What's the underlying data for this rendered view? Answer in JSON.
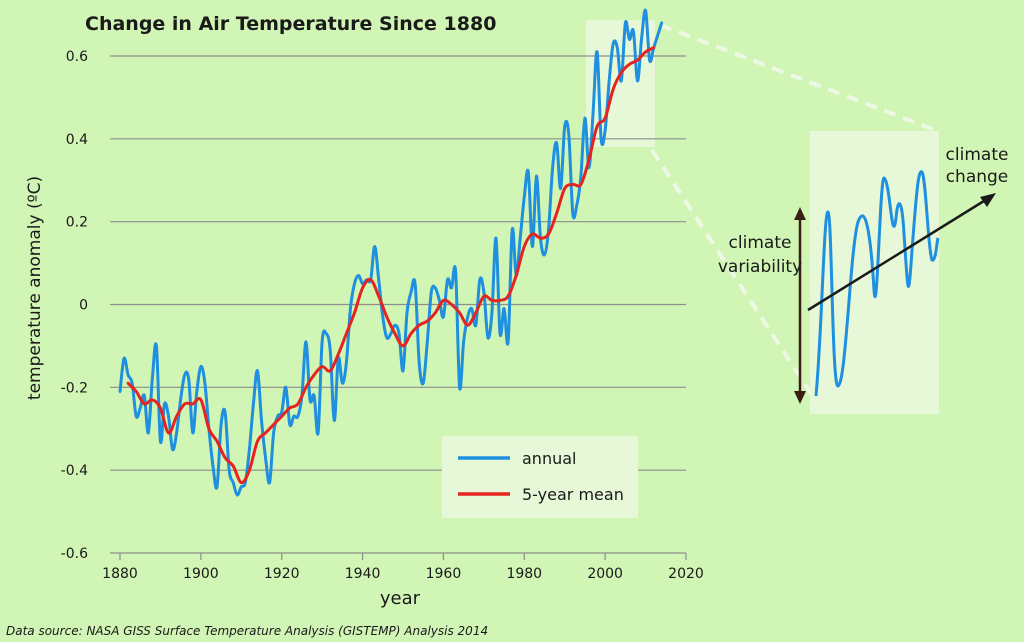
{
  "chart_data": {
    "type": "line",
    "title": "Change in Air Temperature Since 1880",
    "xlabel": "year",
    "ylabel": "temperature anomaly (ºC)",
    "xlim": [
      1880,
      2020
    ],
    "ylim": [
      -0.6,
      0.6
    ],
    "xticks": [
      1880,
      1900,
      1920,
      1940,
      1960,
      1980,
      2000,
      2020
    ],
    "yticks": [
      -0.6,
      -0.4,
      -0.2,
      0,
      0.2,
      0.4,
      0.6
    ],
    "xtick_labels": [
      "1880",
      "1900",
      "1920",
      "1940",
      "1960",
      "1980",
      "2000",
      "2020"
    ],
    "ytick_labels": [
      "-0.6",
      "-0.4",
      "-0.2",
      "0",
      "0.2",
      "0.4",
      "0.6"
    ],
    "grid": "horizontal",
    "legend": {
      "placement": "bottom-right",
      "entries": [
        "annual",
        "5-year mean"
      ]
    },
    "series": [
      {
        "name": "annual",
        "color": "#1f8fdf",
        "x": [
          1880,
          1881,
          1882,
          1883,
          1884,
          1885,
          1886,
          1887,
          1888,
          1889,
          1890,
          1891,
          1892,
          1893,
          1894,
          1895,
          1896,
          1897,
          1898,
          1899,
          1900,
          1901,
          1902,
          1903,
          1904,
          1905,
          1906,
          1907,
          1908,
          1909,
          1910,
          1911,
          1912,
          1913,
          1914,
          1915,
          1916,
          1917,
          1918,
          1919,
          1920,
          1921,
          1922,
          1923,
          1924,
          1925,
          1926,
          1927,
          1928,
          1929,
          1930,
          1931,
          1932,
          1933,
          1934,
          1935,
          1936,
          1937,
          1938,
          1939,
          1940,
          1941,
          1942,
          1943,
          1944,
          1945,
          1946,
          1947,
          1948,
          1949,
          1950,
          1951,
          1952,
          1953,
          1954,
          1955,
          1956,
          1957,
          1958,
          1959,
          1960,
          1961,
          1962,
          1963,
          1964,
          1965,
          1966,
          1967,
          1968,
          1969,
          1970,
          1971,
          1972,
          1973,
          1974,
          1975,
          1976,
          1977,
          1978,
          1979,
          1980,
          1981,
          1982,
          1983,
          1984,
          1985,
          1986,
          1987,
          1988,
          1989,
          1990,
          1991,
          1992,
          1993,
          1994,
          1995,
          1996,
          1997,
          1998,
          1999,
          2000,
          2001,
          2002,
          2003,
          2004,
          2005,
          2006,
          2007,
          2008,
          2009,
          2010,
          2011,
          2012,
          2013,
          2014
        ],
        "values": [
          -0.21,
          -0.13,
          -0.17,
          -0.19,
          -0.27,
          -0.25,
          -0.22,
          -0.31,
          -0.18,
          -0.1,
          -0.33,
          -0.24,
          -0.27,
          -0.35,
          -0.31,
          -0.23,
          -0.17,
          -0.18,
          -0.31,
          -0.21,
          -0.15,
          -0.19,
          -0.3,
          -0.39,
          -0.44,
          -0.29,
          -0.26,
          -0.4,
          -0.43,
          -0.46,
          -0.44,
          -0.43,
          -0.35,
          -0.24,
          -0.16,
          -0.28,
          -0.37,
          -0.43,
          -0.31,
          -0.27,
          -0.26,
          -0.2,
          -0.29,
          -0.27,
          -0.27,
          -0.22,
          -0.09,
          -0.23,
          -0.22,
          -0.31,
          -0.09,
          -0.07,
          -0.11,
          -0.28,
          -0.13,
          -0.19,
          -0.14,
          -0.01,
          0.05,
          0.07,
          0.05,
          0.06,
          0.06,
          0.14,
          0.06,
          -0.03,
          -0.08,
          -0.07,
          -0.05,
          -0.07,
          -0.16,
          -0.02,
          0.03,
          0.05,
          -0.14,
          -0.19,
          -0.09,
          0.03,
          0.04,
          0.01,
          -0.03,
          0.06,
          0.04,
          0.08,
          -0.2,
          -0.09,
          -0.03,
          -0.01,
          -0.05,
          0.06,
          0.03,
          -0.08,
          -0.02,
          0.16,
          -0.07,
          -0.01,
          -0.09,
          0.18,
          0.07,
          0.16,
          0.26,
          0.32,
          0.14,
          0.31,
          0.16,
          0.12,
          0.18,
          0.33,
          0.39,
          0.28,
          0.43,
          0.41,
          0.22,
          0.24,
          0.31,
          0.45,
          0.33,
          0.46,
          0.61,
          0.4,
          0.42,
          0.54,
          0.63,
          0.62,
          0.54,
          0.68,
          0.64,
          0.66,
          0.54,
          0.64,
          0.71,
          0.59,
          0.62,
          0.65,
          0.68
        ]
      },
      {
        "name": "5-year mean",
        "color": "#e52420",
        "x": [
          1882,
          1884,
          1886,
          1888,
          1890,
          1892,
          1894,
          1896,
          1898,
          1900,
          1902,
          1904,
          1906,
          1908,
          1910,
          1912,
          1914,
          1916,
          1918,
          1920,
          1922,
          1924,
          1926,
          1928,
          1930,
          1932,
          1934,
          1936,
          1938,
          1940,
          1942,
          1944,
          1946,
          1948,
          1950,
          1952,
          1954,
          1956,
          1958,
          1960,
          1962,
          1964,
          1966,
          1968,
          1970,
          1972,
          1974,
          1976,
          1978,
          1980,
          1982,
          1984,
          1986,
          1988,
          1990,
          1992,
          1994,
          1996,
          1998,
          2000,
          2002,
          2004,
          2006,
          2008,
          2010,
          2012
        ],
        "values": [
          -0.19,
          -0.21,
          -0.24,
          -0.23,
          -0.25,
          -0.31,
          -0.27,
          -0.24,
          -0.24,
          -0.23,
          -0.3,
          -0.33,
          -0.37,
          -0.39,
          -0.43,
          -0.4,
          -0.33,
          -0.31,
          -0.29,
          -0.27,
          -0.25,
          -0.24,
          -0.2,
          -0.17,
          -0.15,
          -0.16,
          -0.12,
          -0.07,
          -0.02,
          0.04,
          0.06,
          0.02,
          -0.03,
          -0.07,
          -0.1,
          -0.07,
          -0.05,
          -0.04,
          -0.02,
          0.01,
          0.0,
          -0.02,
          -0.05,
          -0.02,
          0.02,
          0.01,
          0.01,
          0.02,
          0.07,
          0.14,
          0.17,
          0.16,
          0.17,
          0.22,
          0.28,
          0.29,
          0.29,
          0.35,
          0.43,
          0.45,
          0.52,
          0.56,
          0.58,
          0.59,
          0.61,
          0.62
        ]
      }
    ],
    "inset": {
      "variability_label": "climate\nvariability",
      "trend_label": "climate\nchange"
    },
    "source": "Data source: NASA GISS Surface Temperature Analysis (GISTEMP) Analysis 2014"
  },
  "colors": {
    "background": "#d1f5b5",
    "highlight": "#e6f8d7",
    "grid": "#8e8e8e",
    "annual": "#1f8fdf",
    "mean": "#e52420"
  }
}
